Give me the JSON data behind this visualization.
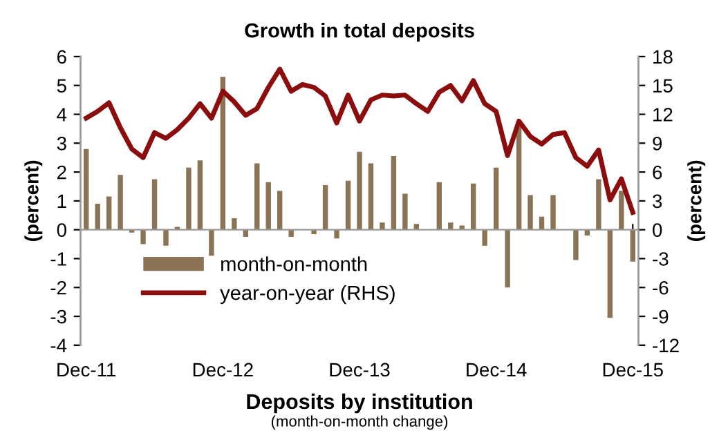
{
  "chart_data": {
    "type": "bar",
    "title": "Growth in total deposits",
    "ylabel": "(percent)",
    "y2label": "(percent)",
    "categories": [
      "Dec-11",
      null,
      null,
      null,
      null,
      null,
      null,
      null,
      null,
      null,
      null,
      null,
      "Dec-12",
      null,
      null,
      null,
      null,
      null,
      null,
      null,
      null,
      null,
      null,
      null,
      "Dec-13",
      null,
      null,
      null,
      null,
      null,
      null,
      null,
      null,
      null,
      null,
      null,
      "Dec-14",
      null,
      null,
      null,
      null,
      null,
      null,
      null,
      null,
      null,
      null,
      null,
      "Dec-15"
    ],
    "series": [
      {
        "name": "month-on-month",
        "color": "#8b7355",
        "values": [
          2.8,
          0.9,
          1.15,
          1.9,
          -0.1,
          -0.5,
          1.75,
          -0.55,
          0.1,
          2.15,
          2.4,
          -0.9,
          5.3,
          0.4,
          -0.25,
          2.3,
          1.65,
          1.35,
          -0.25,
          0.0,
          -0.15,
          1.55,
          -0.3,
          1.7,
          2.7,
          2.3,
          0.25,
          2.55,
          1.25,
          0.2,
          0.0,
          1.65,
          0.25,
          0.15,
          1.6,
          -0.55,
          2.15,
          -2.0,
          3.6,
          1.2,
          0.45,
          1.2,
          0.0,
          -1.05,
          -0.2,
          1.75,
          -3.05,
          1.35,
          -1.1
        ]
      },
      {
        "name": "year-on-year (RHS)",
        "type": "line",
        "axis": "y2",
        "color": "#8b0d0d",
        "values": [
          11.6,
          12.3,
          13.2,
          10.6,
          8.4,
          7.5,
          10.1,
          9.5,
          10.4,
          11.6,
          13.1,
          11.6,
          14.4,
          13.3,
          11.9,
          12.6,
          14.8,
          16.7,
          14.4,
          15.1,
          14.8,
          13.9,
          11.1,
          14.0,
          11.3,
          13.5,
          14.0,
          13.9,
          14.0,
          13.1,
          12.3,
          14.3,
          15.0,
          13.4,
          15.5,
          13.1,
          12.3,
          7.7,
          11.3,
          9.7,
          8.9,
          9.9,
          10.1,
          7.5,
          6.6,
          8.3,
          3.1,
          5.3,
          1.8
        ]
      }
    ],
    "ylim": [
      -4,
      6
    ],
    "yticks": [
      -4,
      -3,
      -2,
      -1,
      0,
      1,
      2,
      3,
      4,
      5,
      6
    ],
    "y2lim": [
      -12,
      18
    ],
    "y2ticks": [
      -12,
      -9,
      -6,
      -3,
      0,
      3,
      6,
      9,
      12,
      15,
      18
    ],
    "legend": "bottom left",
    "marker": "none",
    "line_style": "solid",
    "annotations": [
      "Deposits by institution",
      "(month-on-month change)"
    ]
  }
}
